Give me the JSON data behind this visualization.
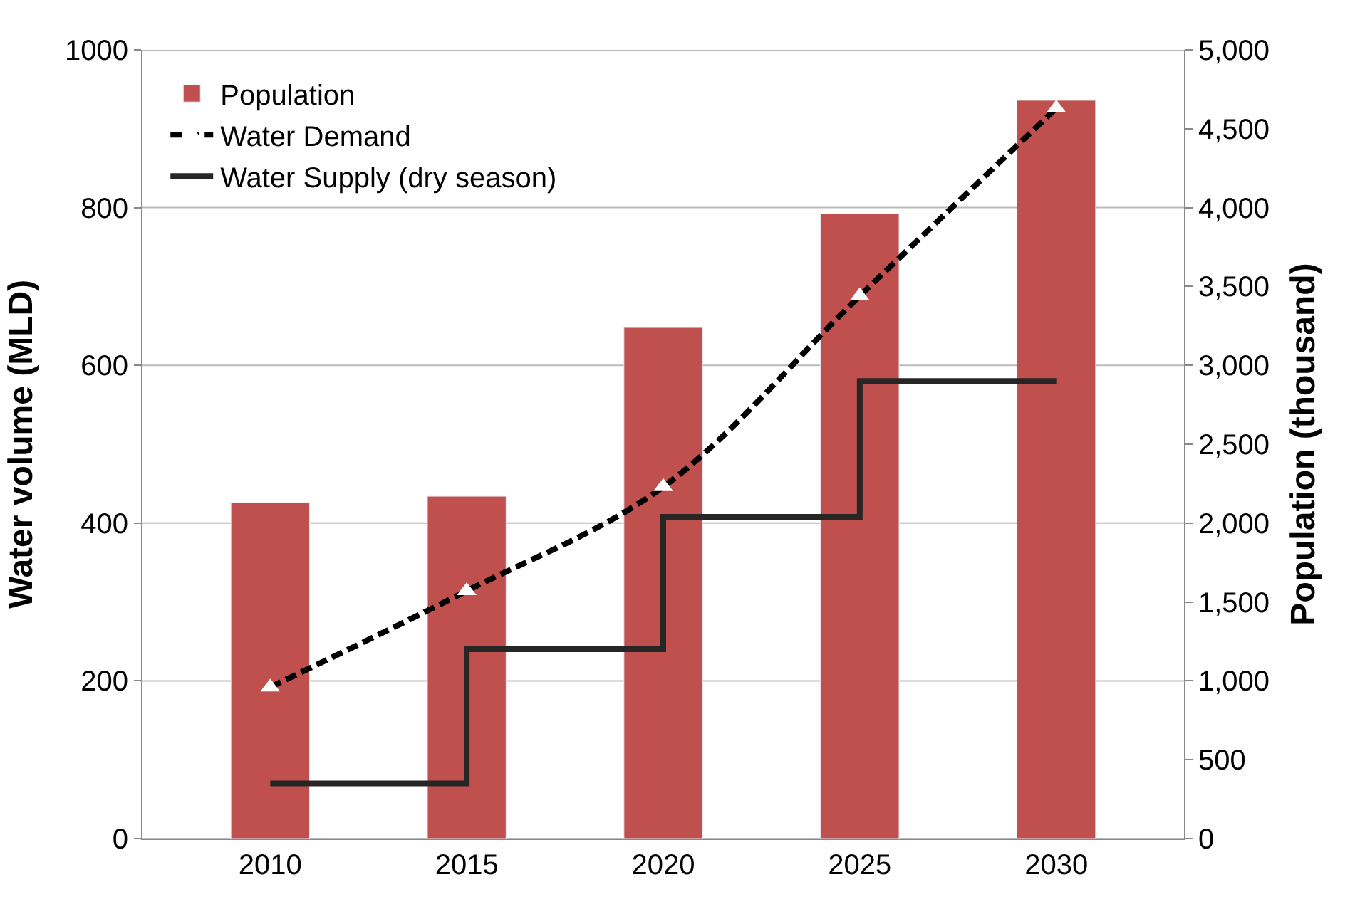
{
  "chart_data": {
    "type": "bar",
    "ylabel": "Water volume (MLD)",
    "y2label": "Population (thousand)",
    "categories": [
      "2010",
      "2015",
      "2020",
      "2025",
      "2030"
    ],
    "series": [
      {
        "name": "Population",
        "axis": "y2",
        "color": "#c0504d",
        "values": [
          2130,
          2170,
          3240,
          3960,
          4680
        ]
      },
      {
        "name": "Water Demand",
        "type": "line",
        "color": "#000000",
        "line_style": "dashed",
        "marker": "triangle",
        "values": [
          192,
          314,
          446,
          688,
          926
        ]
      },
      {
        "name": "Water Supply (dry season)",
        "type": "step",
        "color": "#262626",
        "line_style": "solid",
        "marker": "none",
        "values": [
          70,
          240,
          408,
          580,
          580
        ]
      }
    ],
    "ylim": [
      0,
      1000
    ],
    "yticks": [
      0,
      200,
      400,
      600,
      800,
      1000
    ],
    "y2lim": [
      0,
      5000
    ],
    "y2ticks": [
      {
        "value": 0,
        "label": "0"
      },
      {
        "value": 500,
        "label": "500"
      },
      {
        "value": 1000,
        "label": "1,000"
      },
      {
        "value": 1500,
        "label": "1,500"
      },
      {
        "value": 2000,
        "label": "2,000"
      },
      {
        "value": 2500,
        "label": "2,500"
      },
      {
        "value": 3000,
        "label": "3,000"
      },
      {
        "value": 3500,
        "label": "3,500"
      },
      {
        "value": 4000,
        "label": "4,000"
      },
      {
        "value": 4500,
        "label": "4,500"
      },
      {
        "value": 5000,
        "label": "5,000"
      }
    ],
    "grid": "y",
    "legend": "top left"
  }
}
